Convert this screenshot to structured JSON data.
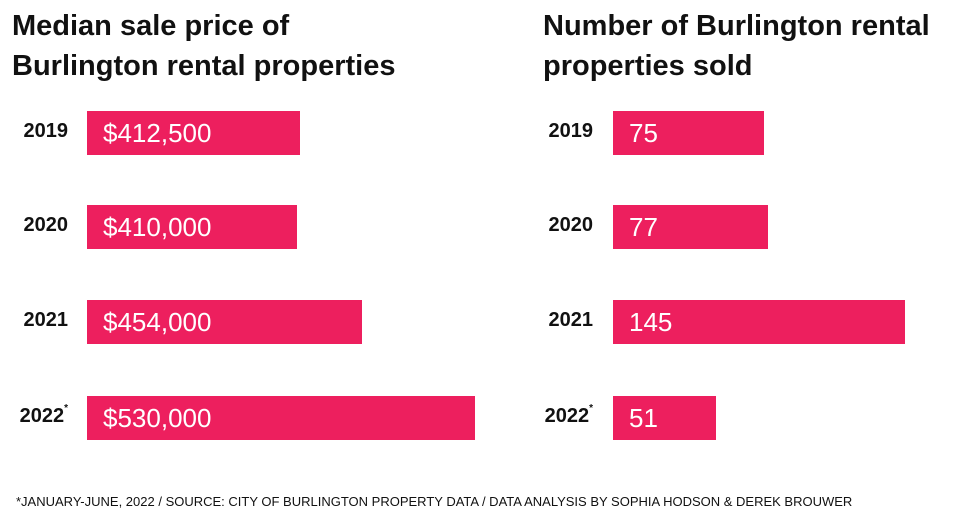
{
  "chart_data": [
    {
      "type": "bar",
      "orientation": "horizontal",
      "title": "Median sale price of Burlington rental properties",
      "title_lines": [
        "Median sale price of",
        "Burlington rental properties"
      ],
      "categories": [
        "2019",
        "2020",
        "2021",
        "2022"
      ],
      "category_markers": [
        "",
        "",
        "",
        "*"
      ],
      "values": [
        412500,
        410000,
        454000,
        530000
      ],
      "value_labels": [
        "$412,500",
        "$410,000",
        "$454,000",
        "$530,000"
      ],
      "xlim": [
        300000,
        530000
      ],
      "color": "#ed1f5e"
    },
    {
      "type": "bar",
      "orientation": "horizontal",
      "title": "Number of Burlington rental properties sold",
      "title_lines": [
        "Number of Burlington rental",
        "properties sold"
      ],
      "categories": [
        "2019",
        "2020",
        "2021",
        "2022"
      ],
      "category_markers": [
        "",
        "",
        "",
        "*"
      ],
      "values": [
        75,
        77,
        145,
        51
      ],
      "value_labels": [
        "75",
        "77",
        "145",
        "51"
      ],
      "xlim": [
        0,
        145
      ],
      "color": "#ed1f5e"
    }
  ],
  "footnote": "*JANUARY-JUNE, 2022 / SOURCE: CITY OF BURLINGTON PROPERTY DATA / DATA ANALYSIS BY SOPHIA HODSON & DEREK BROUWER"
}
